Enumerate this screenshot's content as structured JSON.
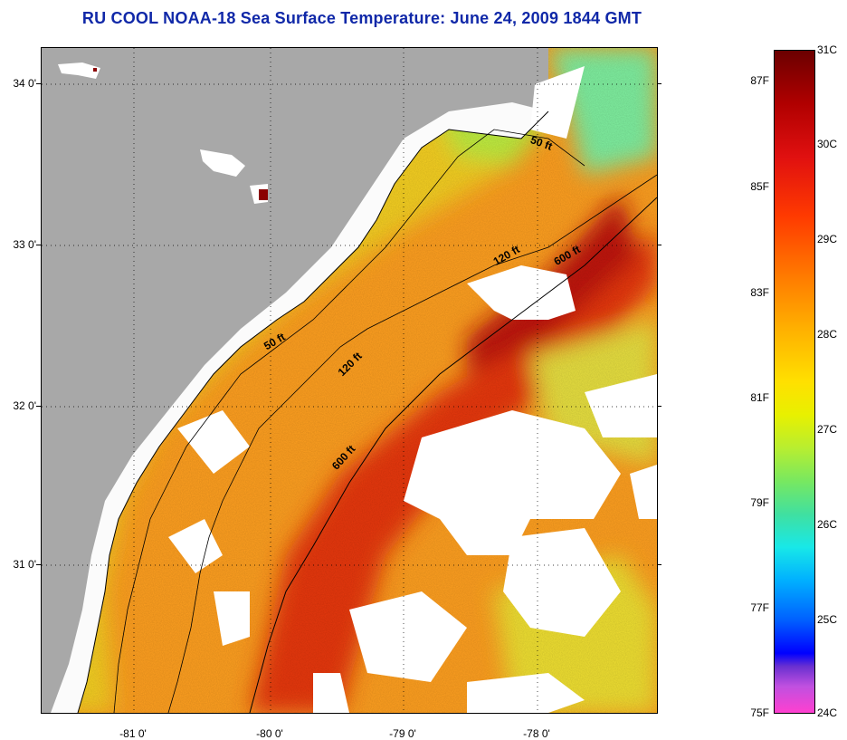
{
  "title": "RU COOL  NOAA-18  Sea Surface Temperature:  June 24, 2009 1844 GMT",
  "lat_labels": [
    "34 0'",
    "33 0'",
    "32 0'",
    "31 0'"
  ],
  "lon_labels": [
    "-81 0'",
    "-80 0'",
    "-79 0'",
    "-78 0'"
  ],
  "isobaths": {
    "a": "50 ft",
    "b": "120 ft",
    "c": "600 ft",
    "d": "50 ft",
    "e": "120 ft",
    "f": "600 ft"
  },
  "colorbar": {
    "fahrenheit": [
      "87F",
      "85F",
      "83F",
      "81F",
      "79F",
      "77F",
      "75F"
    ],
    "celsius": [
      "31C",
      "30C",
      "29C",
      "28C",
      "27C",
      "26C",
      "25C",
      "24C"
    ]
  },
  "colors": {
    "land": "#a8a8a8",
    "cloud": "#ffffff",
    "warm": "#e83010",
    "hot": "#b81010",
    "mid": "#ff8c10",
    "cool": "#f0e020",
    "cold": "#90f090",
    "title": "#1028a8"
  }
}
